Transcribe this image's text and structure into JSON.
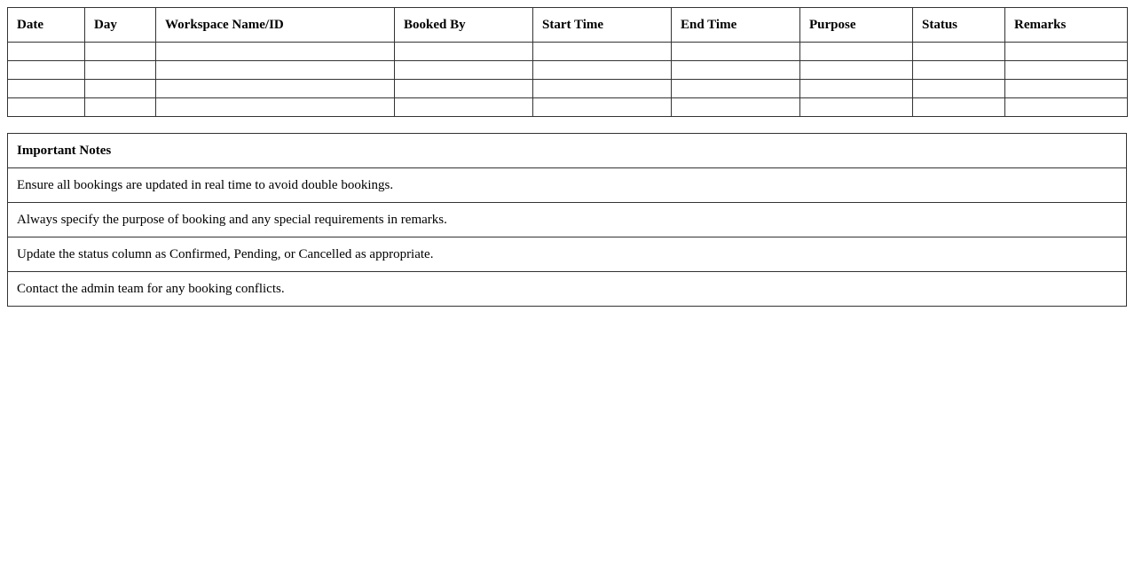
{
  "booking_table": {
    "headers": [
      "Date",
      "Day",
      "Workspace Name/ID",
      "Booked By",
      "Start Time",
      "End Time",
      "Purpose",
      "Status",
      "Remarks"
    ],
    "empty_rows": 4
  },
  "notes": {
    "title": "Important Notes",
    "items": [
      "Ensure all bookings are updated in real time to avoid double bookings.",
      "Always specify the purpose of booking and any special requirements in remarks.",
      "Update the status column as Confirmed, Pending, or Cancelled as appropriate.",
      "Contact the admin team for any booking conflicts."
    ]
  }
}
